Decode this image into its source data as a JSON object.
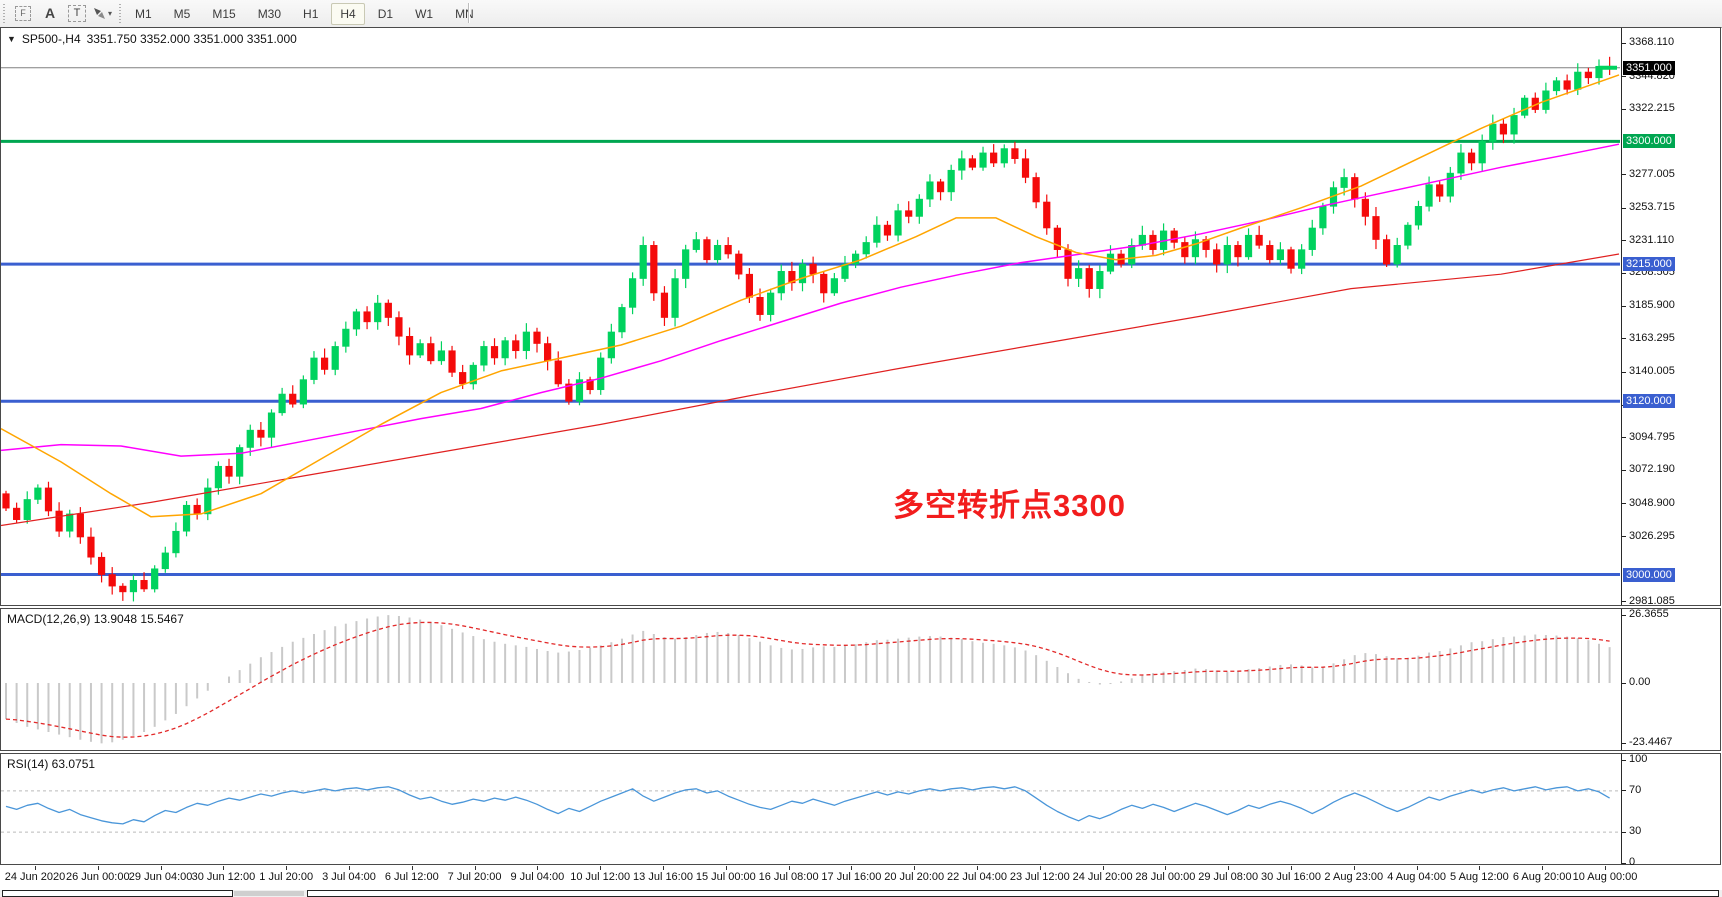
{
  "toolbar": {
    "icons": [
      "fibonacci-tool",
      "text-label-tool",
      "text-tool",
      "arrow-tools"
    ],
    "arrow_dropdown": "▾",
    "timeframes": [
      {
        "label": "M1",
        "active": false
      },
      {
        "label": "M5",
        "active": false
      },
      {
        "label": "M15",
        "active": false
      },
      {
        "label": "M30",
        "active": false
      },
      {
        "label": "H1",
        "active": false
      },
      {
        "label": "H4",
        "active": true
      },
      {
        "label": "D1",
        "active": false
      },
      {
        "label": "W1",
        "active": false
      },
      {
        "label": "MN",
        "active": false
      }
    ]
  },
  "chart": {
    "title": {
      "dropdown": "▼",
      "symbol": "SP500-,H4",
      "ohlc": "3351.750 3352.000 3351.000 3351.000"
    },
    "annotation": {
      "text": "多空转折点3300",
      "color": "#f21d1d"
    },
    "colors": {
      "bull": "#00d25e",
      "bear": "#f40b0b",
      "ma_fast": "#ffa500",
      "ma_mid": "#ff00ff",
      "ma_slow": "#e02020",
      "level_blue": "#3a5fd0",
      "level_green": "#00a651",
      "current_line": "#808080"
    },
    "y_ticks": [
      3368.11,
      3344.82,
      3322.215,
      3277.005,
      3253.715,
      3231.11,
      3208.505,
      3185.9,
      3163.295,
      3140.005,
      3117.4,
      3094.795,
      3072.19,
      3048.9,
      3026.295,
      2981.085
    ],
    "levels": [
      {
        "price": 3351.0,
        "label": "3351.000",
        "badge_bg": "#000000",
        "line": "#808080",
        "thick": 1
      },
      {
        "price": 3300.0,
        "label": "3300.000",
        "badge_bg": "#00a651",
        "line": "#00a651",
        "thick": 3
      },
      {
        "price": 3215.0,
        "label": "3215.000",
        "badge_bg": "#3a5fd0",
        "line": "#3a5fd0",
        "thick": 3
      },
      {
        "price": 3120.0,
        "label": "3120.000",
        "badge_bg": "#3a5fd0",
        "line": "#3a5fd0",
        "thick": 3
      },
      {
        "price": 3000.0,
        "label": "3000.000",
        "badge_bg": "#3a5fd0",
        "line": "#3a5fd0",
        "thick": 3
      }
    ]
  },
  "macd_panel": {
    "label": "MACD(12,26,9) 13.9048 15.5467",
    "axis": [
      {
        "v": 26.3655,
        "label": "26.3655"
      },
      {
        "v": 0,
        "label": "0.00"
      },
      {
        "v": -23.4467,
        "label": "-23.4467"
      }
    ],
    "bar_color": "#c9c9c9",
    "signal_color": "#e22929"
  },
  "rsi_panel": {
    "label": "RSI(14) 63.0751",
    "axis": [
      {
        "v": 100,
        "label": "100"
      },
      {
        "v": 70,
        "label": "70"
      },
      {
        "v": 30,
        "label": "30"
      },
      {
        "v": 0,
        "label": "0"
      }
    ],
    "line_color": "#4a96d9",
    "level_color": "#bbbbbb",
    "levels": [
      70,
      30
    ]
  },
  "time_axis": [
    "24 Jun 2020",
    "26 Jun 00:00",
    "29 Jun 04:00",
    "30 Jun 12:00",
    "1 Jul 20:00",
    "3 Jul 04:00",
    "6 Jul 12:00",
    "7 Jul 20:00",
    "9 Jul 04:00",
    "10 Jul 12:00",
    "13 Jul 16:00",
    "15 Jul 00:00",
    "16 Jul 08:00",
    "17 Jul 16:00",
    "20 Jul 20:00",
    "22 Jul 04:00",
    "23 Jul 12:00",
    "24 Jul 20:00",
    "28 Jul 00:00",
    "29 Jul 08:00",
    "30 Jul 16:00",
    "2 Aug 23:00",
    "4 Aug 04:00",
    "5 Aug 12:00",
    "6 Aug 20:00",
    "10 Aug 00:00"
  ],
  "chart_data": [
    {
      "type": "candlestick",
      "symbol": "SP500-",
      "period": "H4",
      "x_start": "24 Jun 2020",
      "x_end": "10 Aug 2020",
      "first_open": 3056,
      "closes": [
        3046,
        3038,
        3052,
        3060,
        3044,
        3030,
        3042,
        3026,
        3012,
        3000,
        2992,
        2988,
        2996,
        2990,
        3004,
        3015,
        3030,
        3048,
        3042,
        3060,
        3075,
        3068,
        3088,
        3100,
        3095,
        3112,
        3125,
        3118,
        3135,
        3150,
        3142,
        3158,
        3170,
        3182,
        3175,
        3188,
        3178,
        3165,
        3152,
        3160,
        3148,
        3155,
        3140,
        3132,
        3145,
        3158,
        3150,
        3162,
        3155,
        3168,
        3160,
        3148,
        3132,
        3120,
        3135,
        3128,
        3150,
        3168,
        3185,
        3205,
        3228,
        3195,
        3178,
        3205,
        3225,
        3232,
        3218,
        3228,
        3222,
        3208,
        3192,
        3180,
        3195,
        3210,
        3202,
        3215,
        3208,
        3195,
        3205,
        3215,
        3222,
        3230,
        3242,
        3235,
        3252,
        3248,
        3260,
        3272,
        3265,
        3280,
        3288,
        3282,
        3292,
        3285,
        3295,
        3288,
        3275,
        3258,
        3240,
        3225,
        3205,
        3212,
        3198,
        3210,
        3222,
        3215,
        3228,
        3235,
        3225,
        3238,
        3230,
        3220,
        3232,
        3225,
        3215,
        3228,
        3220,
        3235,
        3228,
        3218,
        3225,
        3212,
        3225,
        3240,
        3255,
        3268,
        3275,
        3260,
        3248,
        3232,
        3215,
        3228,
        3242,
        3255,
        3270,
        3262,
        3278,
        3292,
        3285,
        3300,
        3312,
        3305,
        3318,
        3330,
        3322,
        3335,
        3342,
        3336,
        3348,
        3344,
        3352,
        3351
      ],
      "moving_averages": {
        "fast": [
          [
            0,
            3101
          ],
          [
            60,
            3078
          ],
          [
            110,
            3056
          ],
          [
            150,
            3040
          ],
          [
            200,
            3042
          ],
          [
            260,
            3056
          ],
          [
            320,
            3080
          ],
          [
            380,
            3104
          ],
          [
            440,
            3126
          ],
          [
            500,
            3141
          ],
          [
            560,
            3150
          ],
          [
            620,
            3159
          ],
          [
            680,
            3172
          ],
          [
            740,
            3190
          ],
          [
            800,
            3205
          ],
          [
            860,
            3218
          ],
          [
            915,
            3234
          ],
          [
            955,
            3247
          ],
          [
            995,
            3247
          ],
          [
            1035,
            3234
          ],
          [
            1075,
            3223
          ],
          [
            1115,
            3218
          ],
          [
            1155,
            3221
          ],
          [
            1195,
            3229
          ],
          [
            1240,
            3240
          ],
          [
            1300,
            3254
          ],
          [
            1360,
            3269
          ],
          [
            1420,
            3289
          ],
          [
            1480,
            3309
          ],
          [
            1540,
            3327
          ],
          [
            1618,
            3346
          ]
        ],
        "mid": [
          [
            0,
            3086
          ],
          [
            60,
            3090
          ],
          [
            120,
            3089
          ],
          [
            180,
            3082
          ],
          [
            240,
            3084
          ],
          [
            300,
            3092
          ],
          [
            360,
            3100
          ],
          [
            420,
            3108
          ],
          [
            480,
            3115
          ],
          [
            540,
            3126
          ],
          [
            600,
            3136
          ],
          [
            660,
            3148
          ],
          [
            720,
            3162
          ],
          [
            780,
            3175
          ],
          [
            840,
            3188
          ],
          [
            900,
            3199
          ],
          [
            960,
            3208
          ],
          [
            1020,
            3216
          ],
          [
            1080,
            3222
          ],
          [
            1140,
            3228
          ],
          [
            1200,
            3236
          ],
          [
            1260,
            3245
          ],
          [
            1320,
            3255
          ],
          [
            1380,
            3264
          ],
          [
            1440,
            3273
          ],
          [
            1500,
            3282
          ],
          [
            1560,
            3290
          ],
          [
            1618,
            3298
          ]
        ],
        "slow": [
          [
            0,
            3034
          ],
          [
            150,
            3050
          ],
          [
            300,
            3068
          ],
          [
            450,
            3086
          ],
          [
            600,
            3104
          ],
          [
            750,
            3124
          ],
          [
            900,
            3143
          ],
          [
            1050,
            3161
          ],
          [
            1200,
            3179
          ],
          [
            1350,
            3198
          ],
          [
            1500,
            3208
          ],
          [
            1618,
            3222
          ]
        ]
      },
      "price_range_shown": [
        2981.085,
        3368.11
      ]
    },
    {
      "type": "bar",
      "name": "MACD(12,26,9)",
      "current_macd": 13.9048,
      "current_signal": 15.5467,
      "range": [
        -23.4467,
        26.3655
      ],
      "values": [
        -14,
        -15.5,
        -17,
        -18,
        -19,
        -20,
        -21,
        -22,
        -22.8,
        -23.4,
        -23,
        -22,
        -20.5,
        -19,
        -17,
        -14.5,
        -12,
        -9,
        -6,
        -3,
        0,
        2.5,
        5,
        7.5,
        10,
        12,
        14,
        16,
        17.5,
        19,
        20.5,
        22,
        23,
        24,
        25,
        25.8,
        26.3,
        26,
        25.4,
        24.6,
        23.6,
        22.4,
        21,
        19.6,
        18.2,
        17,
        16,
        15.2,
        14.6,
        14,
        13.2,
        12.4,
        11.8,
        12.2,
        12.8,
        13.6,
        14.6,
        15.8,
        17.2,
        18.8,
        20.2,
        19,
        17.8,
        17.2,
        17.8,
        18.6,
        19.4,
        19.8,
        19.4,
        18.6,
        17.4,
        16,
        14.6,
        13.6,
        13,
        13.2,
        13.8,
        14.2,
        14,
        14.4,
        15,
        15.8,
        16.6,
        16.8,
        17.2,
        17.6,
        18,
        18.2,
        18,
        17.6,
        17,
        16.2,
        15.6,
        15.2,
        14.6,
        13.8,
        12.6,
        10.8,
        8.6,
        6.2,
        3.8,
        1.6,
        0.4,
        -0.6,
        -0.4,
        0.6,
        1.8,
        3,
        3.8,
        4.4,
        4.6,
        5,
        5.6,
        5.4,
        4.8,
        4.4,
        4.8,
        5.4,
        5.8,
        6.4,
        7,
        7.2,
        6.8,
        6,
        6.4,
        7.6,
        9.2,
        10.8,
        11.6,
        11.2,
        10.4,
        9.6,
        9.8,
        10.6,
        11.8,
        12.4,
        13.4,
        14.6,
        15.8,
        16.2,
        17,
        17.8,
        18,
        18.4,
        18.8,
        18.6,
        18.4,
        18,
        17.4,
        16.6,
        15.2,
        13.9
      ]
    },
    {
      "type": "line",
      "name": "RSI(14)",
      "current": 63.0751,
      "range": [
        0,
        100
      ],
      "levels": [
        70,
        30
      ],
      "values": [
        55,
        52,
        56,
        58,
        53,
        49,
        52,
        47,
        44,
        41,
        39,
        38,
        42,
        40,
        46,
        51,
        49,
        54,
        58,
        56,
        60,
        63,
        61,
        64,
        67,
        65,
        68,
        70,
        68,
        70,
        72,
        70,
        72,
        73,
        71,
        73,
        74,
        71,
        66,
        62,
        64,
        60,
        57,
        59,
        62,
        60,
        63,
        61,
        64,
        61,
        57,
        52,
        48,
        53,
        50,
        55,
        60,
        64,
        68,
        72,
        65,
        60,
        64,
        68,
        71,
        72,
        68,
        70,
        65,
        61,
        57,
        54,
        52,
        56,
        60,
        58,
        62,
        59,
        56,
        60,
        63,
        66,
        69,
        66,
        69,
        67,
        70,
        72,
        70,
        72,
        73,
        71,
        73,
        74,
        72,
        74,
        70,
        63,
        56,
        50,
        45,
        41,
        46,
        43,
        47,
        52,
        56,
        53,
        57,
        54,
        50,
        54,
        58,
        55,
        51,
        47,
        51,
        56,
        53,
        57,
        60,
        57,
        53,
        48,
        53,
        59,
        64,
        68,
        64,
        59,
        54,
        50,
        54,
        59,
        64,
        61,
        65,
        68,
        71,
        68,
        71,
        73,
        70,
        72,
        74,
        71,
        73,
        74,
        70,
        72,
        69,
        63
      ]
    }
  ]
}
